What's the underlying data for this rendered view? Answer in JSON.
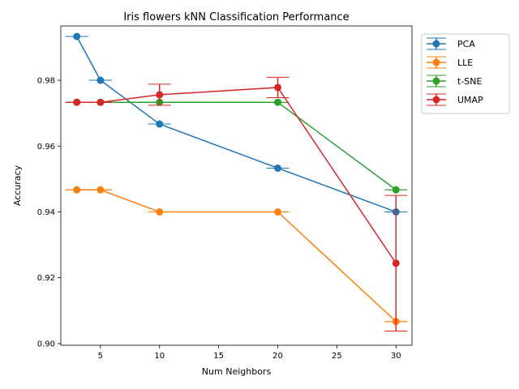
{
  "chart_data": {
    "type": "line",
    "title": "Iris flowers kNN Classification Performance",
    "xlabel": "Num Neighbors",
    "ylabel": "Accuracy",
    "xlim": [
      1.65,
      31.35
    ],
    "ylim": [
      0.8995,
      0.9965
    ],
    "xticks": [
      5,
      10,
      15,
      20,
      25,
      30
    ],
    "yticks": [
      0.9,
      0.92,
      0.94,
      0.96,
      0.98
    ],
    "legend_position": "outside-top-right",
    "series": [
      {
        "name": "PCA",
        "color": "#1f77b4",
        "points": [
          {
            "x": 3,
            "y": 0.9933,
            "y_err": 0
          },
          {
            "x": 5,
            "y": 0.98,
            "y_err": 0
          },
          {
            "x": 10,
            "y": 0.9667,
            "y_err": 0
          },
          {
            "x": 20,
            "y": 0.9533,
            "y_err": 0
          },
          {
            "x": 30,
            "y": 0.94,
            "y_err": 0
          }
        ]
      },
      {
        "name": "LLE",
        "color": "#ff7f0e",
        "points": [
          {
            "x": 3,
            "y": 0.9467,
            "y_err": 0
          },
          {
            "x": 5,
            "y": 0.9467,
            "y_err": 0
          },
          {
            "x": 10,
            "y": 0.94,
            "y_err": 0
          },
          {
            "x": 20,
            "y": 0.94,
            "y_err": 0
          },
          {
            "x": 30,
            "y": 0.9067,
            "y_err": 0
          }
        ]
      },
      {
        "name": "t-SNE",
        "color": "#2ca02c",
        "points": [
          {
            "x": 3,
            "y": 0.9733,
            "y_err": 0
          },
          {
            "x": 5,
            "y": 0.9733,
            "y_err": 0
          },
          {
            "x": 10,
            "y": 0.9733,
            "y_err": 0
          },
          {
            "x": 20,
            "y": 0.9733,
            "y_err": 0
          },
          {
            "x": 30,
            "y": 0.9467,
            "y_err": 0
          }
        ]
      },
      {
        "name": "UMAP",
        "color": "#d62728",
        "points": [
          {
            "x": 3,
            "y": 0.9733,
            "y_err": 0
          },
          {
            "x": 5,
            "y": 0.9733,
            "y_err": 0
          },
          {
            "x": 10,
            "y": 0.9756,
            "y_err": 0.0032
          },
          {
            "x": 20,
            "y": 0.9778,
            "y_err": 0.0031
          },
          {
            "x": 30,
            "y": 0.9244,
            "y_err": 0.0206
          }
        ]
      }
    ]
  }
}
